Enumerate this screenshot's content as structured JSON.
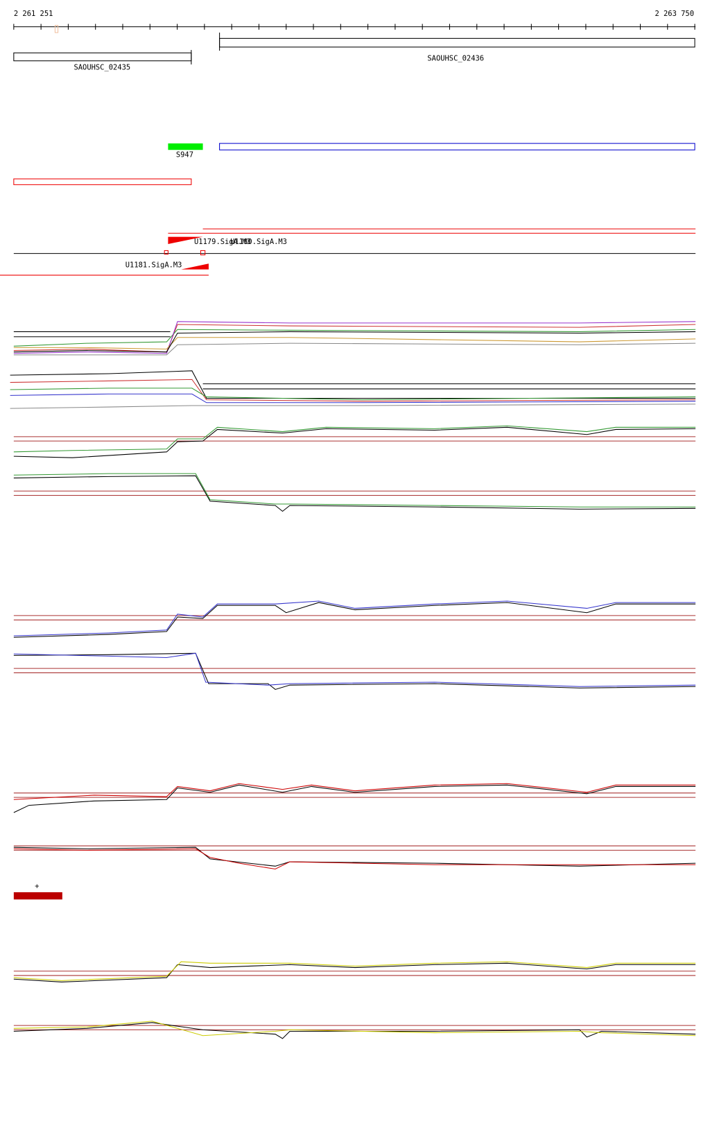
{
  "axis": {
    "start": "2 261 251",
    "end": "2 263 750"
  },
  "genes": [
    {
      "label": "SAOUHSC_02435"
    },
    {
      "label": "SAOUHSC_02436"
    }
  ],
  "features": [
    {
      "label": "S947"
    }
  ],
  "promoters": [
    {
      "label": "U1179.SigA.M3"
    },
    {
      "label": "U1180.SigA.M3"
    },
    {
      "label": "U1181.SigA.M3"
    }
  ],
  "marker": {
    "label": "+"
  }
}
